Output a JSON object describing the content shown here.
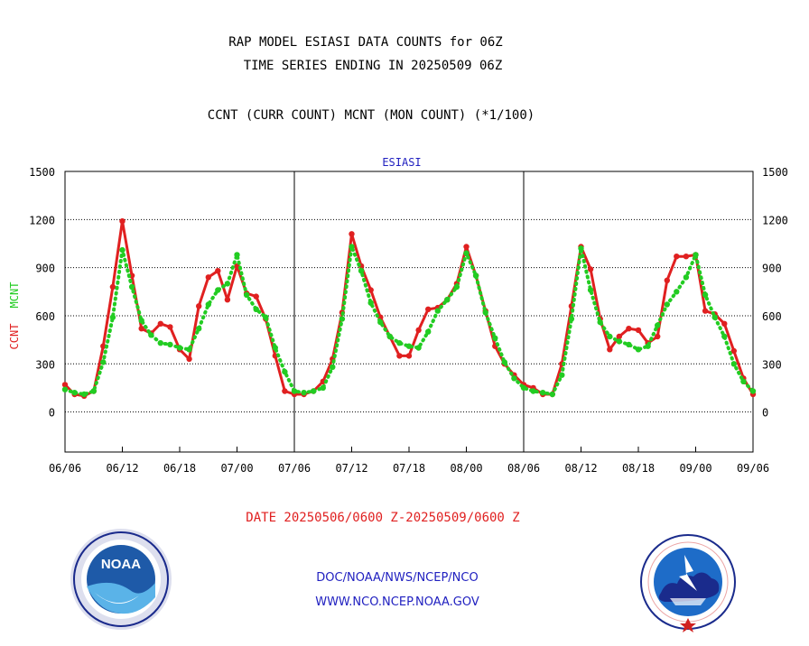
{
  "header": {
    "line1": "RAP MODEL ESIASI DATA COUNTS for 06Z",
    "line2": "TIME SERIES ENDING IN 20250509 06Z",
    "line3": "CCNT (CURR COUNT) MCNT (MON COUNT) (*1/100)"
  },
  "footer": {
    "date_range": "DATE 20250506/0600 Z-20250509/0600 Z",
    "org_path": "DOC/NOAA/NWS/NCEP/NCO",
    "website": "WWW.NCO.NCEP.NOAA.GOV"
  },
  "logos": {
    "left": {
      "icon": "noaa-logo-icon",
      "text": "NOAA"
    },
    "right": {
      "icon": "nws-logo-icon"
    }
  },
  "colors": {
    "ccnt": "#e02020",
    "mcnt": "#22cc22",
    "title": "#2020c0",
    "axis": "#000000"
  },
  "chart_data": {
    "type": "line",
    "title": "ESIASI",
    "ylabel_left": [
      {
        "text": "CCNT",
        "color": "#e02020"
      },
      {
        "text": "MCNT",
        "color": "#22cc22"
      }
    ],
    "ylim": [
      -250,
      1500
    ],
    "yticks": [
      0,
      300,
      600,
      900,
      1200,
      1500
    ],
    "xlim": [
      0,
      72
    ],
    "xticks": [
      {
        "x": 0,
        "label": "06/06"
      },
      {
        "x": 6,
        "label": "06/12"
      },
      {
        "x": 12,
        "label": "06/18"
      },
      {
        "x": 18,
        "label": "07/00"
      },
      {
        "x": 24,
        "label": "07/06"
      },
      {
        "x": 30,
        "label": "07/12"
      },
      {
        "x": 36,
        "label": "07/18"
      },
      {
        "x": 42,
        "label": "08/00"
      },
      {
        "x": 48,
        "label": "08/06"
      },
      {
        "x": 54,
        "label": "08/12"
      },
      {
        "x": 60,
        "label": "08/18"
      },
      {
        "x": 66,
        "label": "09/00"
      },
      {
        "x": 72,
        "label": "09/06"
      }
    ],
    "day_separators": [
      24,
      48
    ],
    "grid": true,
    "series": [
      {
        "name": "CCNT",
        "color": "#e02020",
        "style": "solid",
        "x": [
          0,
          1,
          2,
          3,
          4,
          5,
          6,
          7,
          8,
          9,
          10,
          11,
          12,
          13,
          14,
          15,
          16,
          17,
          18,
          19,
          20,
          21,
          22,
          23,
          24,
          25,
          26,
          27,
          28,
          29,
          30,
          31,
          32,
          33,
          34,
          35,
          36,
          37,
          38,
          39,
          40,
          41,
          42,
          43,
          44,
          45,
          46,
          47,
          48,
          49,
          50,
          51,
          52,
          53,
          54,
          55,
          56,
          57,
          58,
          59,
          60,
          61,
          62,
          63,
          64,
          65,
          66,
          67,
          68,
          69,
          70,
          71,
          72
        ],
        "y": [
          170,
          110,
          100,
          130,
          410,
          780,
          1190,
          850,
          520,
          490,
          550,
          530,
          390,
          330,
          660,
          840,
          880,
          700,
          910,
          740,
          720,
          580,
          350,
          130,
          110,
          110,
          130,
          190,
          330,
          620,
          1110,
          910,
          760,
          590,
          470,
          350,
          350,
          510,
          640,
          650,
          700,
          800,
          1030,
          850,
          630,
          410,
          300,
          230,
          170,
          150,
          110,
          110,
          300,
          660,
          1030,
          890,
          580,
          390,
          470,
          520,
          510,
          430,
          470,
          820,
          970,
          970,
          980,
          630,
          610,
          550,
          380,
          210,
          110
        ]
      },
      {
        "name": "MCNT",
        "color": "#22cc22",
        "style": "dotted",
        "x": [
          0,
          1,
          2,
          3,
          4,
          5,
          6,
          7,
          8,
          9,
          10,
          11,
          12,
          13,
          14,
          15,
          16,
          17,
          18,
          19,
          20,
          21,
          22,
          23,
          24,
          25,
          26,
          27,
          28,
          29,
          30,
          31,
          32,
          33,
          34,
          35,
          36,
          37,
          38,
          39,
          40,
          41,
          42,
          43,
          44,
          45,
          46,
          47,
          48,
          49,
          50,
          51,
          52,
          53,
          54,
          55,
          56,
          57,
          58,
          59,
          60,
          61,
          62,
          63,
          64,
          65,
          66,
          67,
          68,
          69,
          70,
          71,
          72
        ],
        "y": [
          140,
          120,
          110,
          130,
          310,
          590,
          1010,
          780,
          570,
          480,
          430,
          420,
          400,
          390,
          520,
          670,
          760,
          800,
          980,
          730,
          640,
          590,
          400,
          250,
          130,
          120,
          130,
          150,
          280,
          580,
          1030,
          880,
          680,
          560,
          470,
          430,
          410,
          400,
          500,
          630,
          700,
          780,
          990,
          850,
          620,
          460,
          310,
          210,
          150,
          130,
          120,
          110,
          230,
          580,
          1020,
          760,
          560,
          470,
          440,
          420,
          390,
          410,
          540,
          670,
          750,
          840,
          980,
          730,
          590,
          470,
          300,
          190,
          130
        ]
      }
    ]
  }
}
